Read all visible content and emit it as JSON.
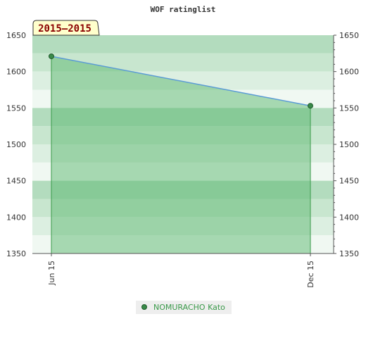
{
  "chart_data": {
    "type": "area",
    "title": "WOF ratinglist",
    "period_badge": "2015–2015",
    "x": [
      "Jun 15",
      "Dec 15"
    ],
    "series": [
      {
        "name": "NOMURACHO Kato",
        "values": [
          1621,
          1553
        ]
      }
    ],
    "ylim": [
      1350,
      1650
    ],
    "yticks": [
      1350,
      1400,
      1450,
      1500,
      1550,
      1600,
      1650
    ],
    "y_axis_sides": [
      "left",
      "right"
    ],
    "grid": true,
    "legend": "bottom-center",
    "colors": {
      "line": "#5b9bd5",
      "area": "#5cb870",
      "marker": "#3a8a4a",
      "legend_text": "#3a9a4a",
      "badge_fill": "#ffffcc",
      "badge_text": "#8b0000"
    }
  }
}
